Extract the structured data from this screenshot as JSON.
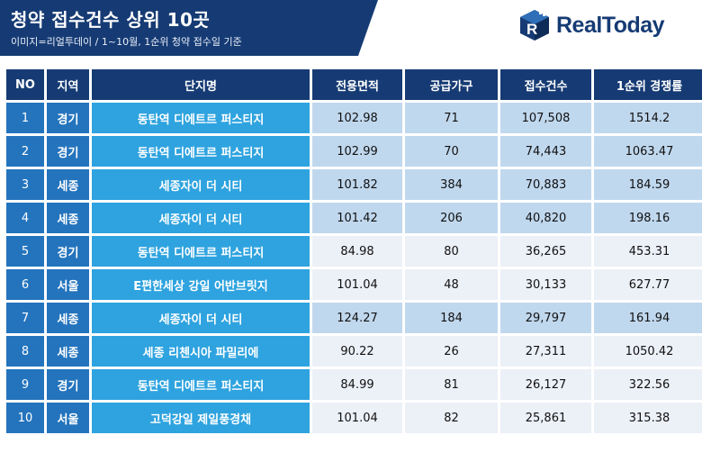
{
  "header": {
    "title": "청약 접수건수 상위 10곳",
    "subtitle": "이미지=리얼투데이 / 1~10월, 1순위 청약 접수일 기준"
  },
  "logo": {
    "text": "RealToday",
    "icon": "realtoday-cube-icon",
    "color": "#163b74"
  },
  "table": {
    "headers": [
      "NO",
      "지역",
      "단지명",
      "전용면적",
      "공급가구",
      "접수건수",
      "1순위 경쟁률"
    ],
    "rows": [
      [
        "1",
        "경기",
        "동탄역 디에트르 퍼스티지",
        "102.98",
        "71",
        "107,508",
        "1514.2"
      ],
      [
        "2",
        "경기",
        "동탄역 디에트르 퍼스티지",
        "102.99",
        "70",
        "74,443",
        "1063.47"
      ],
      [
        "3",
        "세종",
        "세종자이 더 시티",
        "101.82",
        "384",
        "70,883",
        "184.59"
      ],
      [
        "4",
        "세종",
        "세종자이 더 시티",
        "101.42",
        "206",
        "40,820",
        "198.16"
      ],
      [
        "5",
        "경기",
        "동탄역 디에트르 퍼스티지",
        "84.98",
        "80",
        "36,265",
        "453.31"
      ],
      [
        "6",
        "서울",
        "E편한세상 강일 어반브릿지",
        "101.04",
        "48",
        "30,133",
        "627.77"
      ],
      [
        "7",
        "세종",
        "세종자이 더 시티",
        "124.27",
        "184",
        "29,797",
        "161.94"
      ],
      [
        "8",
        "세종",
        "세종 리첸시아 파밀리에",
        "90.22",
        "26",
        "27,311",
        "1050.42"
      ],
      [
        "9",
        "경기",
        "동탄역 디에트르 퍼스티지",
        "84.99",
        "81",
        "26,127",
        "322.56"
      ],
      [
        "10",
        "서울",
        "고덕강일 제일풍경채",
        "101.04",
        "82",
        "25,861",
        "315.38"
      ]
    ]
  },
  "colors": {
    "header_navy": "#163b74",
    "no_region_blue": "#2474bd",
    "name_blue": "#2ea3df",
    "numeric_light": "#ecf0f7",
    "numeric_mid": "#c0d8ee"
  }
}
